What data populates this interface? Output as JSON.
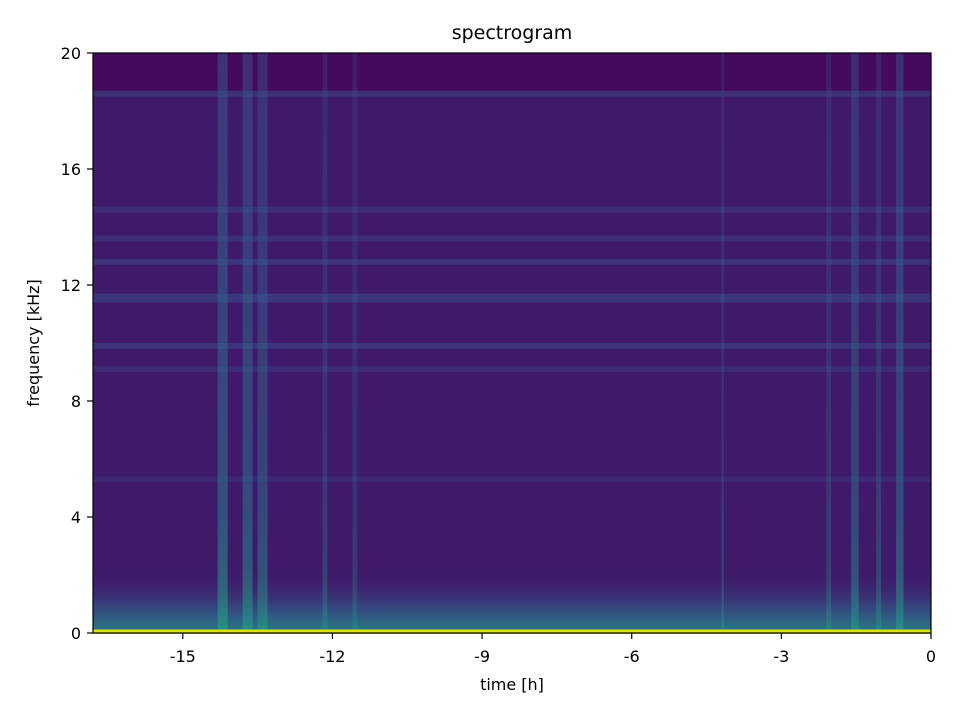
{
  "chart_data": {
    "type": "heatmap",
    "title": "spectrogram",
    "xlabel": "time [h]",
    "ylabel": "frequency [kHz]",
    "xlim": [
      -16.8,
      0
    ],
    "ylim": [
      0,
      20
    ],
    "x_ticks": [
      {
        "value": -15,
        "label": "-15"
      },
      {
        "value": -12,
        "label": "-12"
      },
      {
        "value": -9,
        "label": "-9"
      },
      {
        "value": -6,
        "label": "-6"
      },
      {
        "value": -3,
        "label": "-3"
      },
      {
        "value": 0,
        "label": "0"
      }
    ],
    "y_ticks": [
      {
        "value": 0,
        "label": "0"
      },
      {
        "value": 4,
        "label": "4"
      },
      {
        "value": 8,
        "label": "8"
      },
      {
        "value": 12,
        "label": "12"
      },
      {
        "value": 16,
        "label": "16"
      },
      {
        "value": 20,
        "label": "20"
      }
    ],
    "colormap": "viridis",
    "colors": {
      "background": "#3f1a6b",
      "top_band": "#440a5c",
      "low_freq": "#2f6e8e",
      "floor_line": "#d8e219"
    },
    "horizontal_bands_khz": [
      {
        "from": 18.5,
        "to": 18.7,
        "intensity": 0.12
      },
      {
        "from": 14.5,
        "to": 14.7,
        "intensity": 0.1
      },
      {
        "from": 13.5,
        "to": 13.7,
        "intensity": 0.1
      },
      {
        "from": 12.7,
        "to": 12.9,
        "intensity": 0.12
      },
      {
        "from": 11.4,
        "to": 11.7,
        "intensity": 0.14
      },
      {
        "from": 9.8,
        "to": 10.0,
        "intensity": 0.12
      },
      {
        "from": 9.0,
        "to": 9.2,
        "intensity": 0.08
      },
      {
        "from": 5.2,
        "to": 5.4,
        "intensity": 0.06
      }
    ],
    "vertical_bursts_h": [
      {
        "from": -14.3,
        "to": -14.1,
        "intensity": 0.55
      },
      {
        "from": -13.8,
        "to": -13.6,
        "intensity": 0.5
      },
      {
        "from": -13.5,
        "to": -13.3,
        "intensity": 0.45
      },
      {
        "from": -12.2,
        "to": -12.1,
        "intensity": 0.3
      },
      {
        "from": -11.6,
        "to": -11.5,
        "intensity": 0.25
      },
      {
        "from": -4.2,
        "to": -4.15,
        "intensity": 0.3
      },
      {
        "from": -2.1,
        "to": -2.0,
        "intensity": 0.3
      },
      {
        "from": -1.6,
        "to": -1.45,
        "intensity": 0.45
      },
      {
        "from": -1.1,
        "to": -1.0,
        "intensity": 0.35
      },
      {
        "from": -0.7,
        "to": -0.55,
        "intensity": 0.5
      }
    ]
  }
}
